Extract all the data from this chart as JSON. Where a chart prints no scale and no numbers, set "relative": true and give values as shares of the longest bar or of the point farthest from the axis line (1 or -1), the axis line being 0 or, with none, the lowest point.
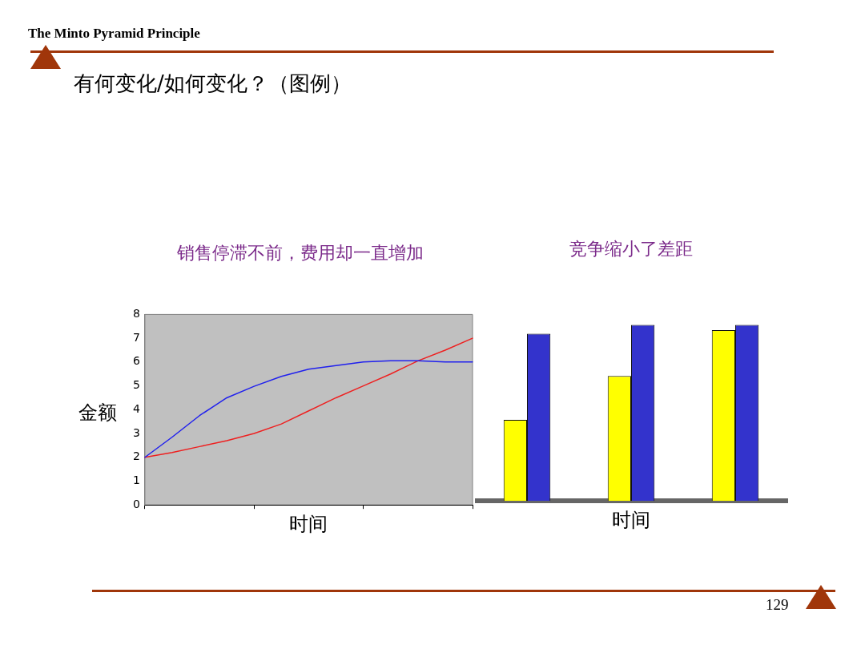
{
  "chart_data": [
    {
      "type": "line",
      "title": "销售停滞不前，费用却一直增加",
      "xlabel": "时间",
      "ylabel": "金额",
      "annotations": [
        "The Minto Pyramid Principle",
        "有何变化/如何变化？（图例）",
        "129"
      ],
      "categories": [
        null,
        null,
        null,
        null,
        null,
        null,
        null,
        null,
        null,
        null,
        null,
        null,
        null
      ],
      "series": [
        {
          "color": "#2020ee",
          "values": [
            2,
            2.85,
            3.75,
            4.5,
            4.98,
            5.4,
            5.7,
            5.85,
            6.0,
            6.05,
            6.05,
            6.0,
            6.0
          ]
        },
        {
          "color": "#ee2020",
          "values": [
            2,
            2.2,
            2.45,
            2.7,
            3.0,
            3.4,
            3.95,
            4.5,
            5.0,
            5.5,
            6.05,
            6.5,
            7.0
          ]
        }
      ],
      "ylim": [
        0,
        8
      ],
      "yticks": [
        0,
        1,
        2,
        3,
        4,
        5,
        6,
        7,
        8
      ],
      "grid": false,
      "tick_labels": "y"
    },
    {
      "type": "bar",
      "title": "竞争缩小了差距",
      "xlabel": "时间",
      "relative": true,
      "categories": [
        null,
        null,
        null
      ],
      "series": [
        {
          "color": "#ffff00",
          "values": [
            0.46,
            0.71,
            0.97
          ]
        },
        {
          "color": "#3333cc",
          "values": [
            0.95,
            1,
            1
          ]
        }
      ],
      "grid": false,
      "tick_labels": false
    }
  ]
}
